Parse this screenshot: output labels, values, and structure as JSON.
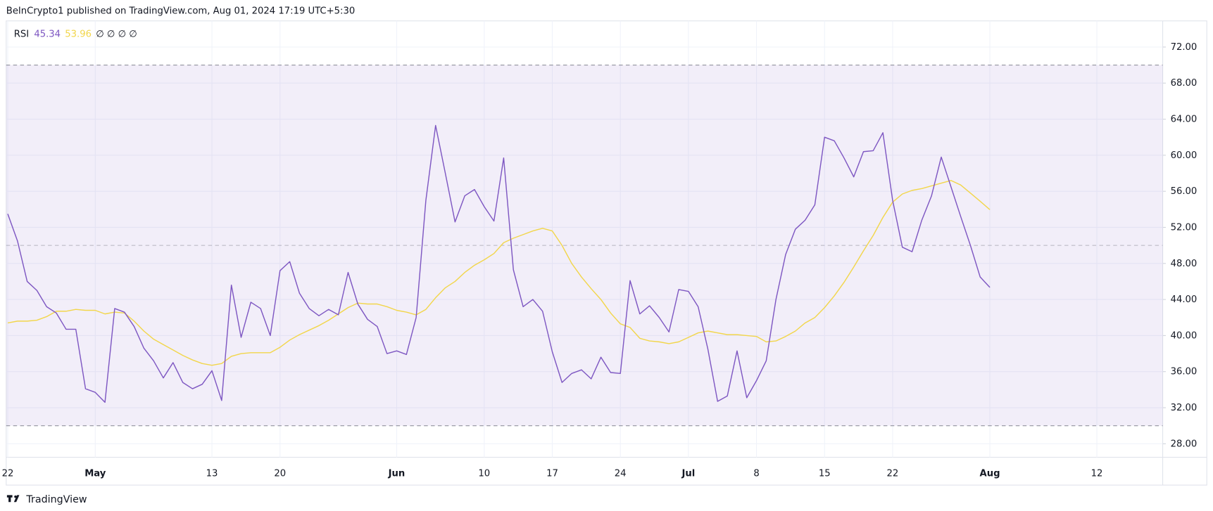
{
  "header": "BeInCrypto1 published on TradingView.com, Aug 01, 2024 17:19 UTC+5:30",
  "footer": "TradingView",
  "chart_data": {
    "type": "line",
    "indicator": "RSI",
    "legend_extra": "∅ ∅ ∅ ∅",
    "categories": [
      "22",
      null,
      null,
      null,
      null,
      null,
      null,
      null,
      null,
      "May",
      null,
      null,
      null,
      null,
      null,
      null,
      null,
      null,
      null,
      null,
      null,
      "13",
      null,
      null,
      null,
      null,
      null,
      null,
      "20",
      null,
      null,
      null,
      null,
      null,
      null,
      null,
      null,
      null,
      null,
      null,
      "Jun",
      null,
      null,
      null,
      null,
      null,
      null,
      null,
      null,
      "10",
      null,
      null,
      null,
      null,
      null,
      null,
      "17",
      null,
      null,
      null,
      null,
      null,
      null,
      "24",
      null,
      null,
      null,
      null,
      null,
      null,
      "Jul",
      null,
      null,
      null,
      null,
      null,
      null,
      "8",
      null,
      null,
      null,
      null,
      null,
      null,
      "15",
      null,
      null,
      null,
      null,
      null,
      null,
      "22",
      null,
      null,
      null,
      null,
      null,
      null,
      null,
      null,
      null,
      "Aug",
      null,
      null,
      null,
      null,
      null,
      null,
      null,
      null,
      null,
      null,
      "12",
      null,
      null,
      null,
      null,
      null,
      null
    ],
    "series": [
      {
        "color": "#7e57c2",
        "values": [
          53.5,
          50.5,
          46,
          45,
          43.2,
          42.5,
          40.7,
          40.7,
          34.1,
          33.7,
          32.6,
          43,
          42.6,
          41,
          38.6,
          37.2,
          35.3,
          37,
          34.8,
          34.1,
          34.6,
          36.1,
          32.8,
          45.6,
          39.8,
          43.7,
          43,
          40,
          47.2,
          48.2,
          44.7,
          43,
          42.2,
          42.9,
          42.3,
          47,
          43.5,
          41.8,
          41,
          38,
          38.3,
          37.9,
          42,
          55,
          63.3,
          58,
          52.6,
          55.5,
          56.2,
          54.3,
          52.7,
          59.7,
          47.3,
          43.2,
          44,
          42.7,
          38.2,
          34.8,
          35.8,
          36.2,
          35.2,
          37.6,
          35.9,
          35.8,
          46.1,
          42.4,
          43.3,
          42,
          40.4,
          45.1,
          44.9,
          43.2,
          38.5,
          32.7,
          33.3,
          38.3,
          33.1,
          35,
          37.2,
          44,
          49,
          51.8,
          52.8,
          54.5,
          62,
          61.6,
          59.7,
          57.6,
          60.4,
          60.5,
          62.5,
          55,
          49.8,
          49.3,
          52.8,
          55.5,
          59.8,
          56.5,
          53.2,
          50,
          46.5,
          45.34,
          null,
          null,
          null,
          null,
          null,
          null,
          null,
          null,
          null,
          null,
          null,
          null,
          null,
          null,
          null,
          null,
          null
        ]
      },
      {
        "color": "#f2d64b",
        "values": [
          41.4,
          41.6,
          41.6,
          41.7,
          42.1,
          42.7,
          42.7,
          42.9,
          42.8,
          42.8,
          42.4,
          42.6,
          42.5,
          41.6,
          40.5,
          39.6,
          39,
          38.4,
          37.8,
          37.3,
          36.9,
          36.7,
          36.9,
          37.7,
          38,
          38.1,
          38.1,
          38.1,
          38.7,
          39.5,
          40.1,
          40.6,
          41.1,
          41.7,
          42.4,
          43.1,
          43.6,
          43.5,
          43.5,
          43.2,
          42.8,
          42.6,
          42.3,
          42.9,
          44.2,
          45.3,
          46,
          47,
          47.8,
          48.4,
          49.1,
          50.3,
          50.8,
          51.2,
          51.6,
          51.9,
          51.6,
          50,
          48,
          46.5,
          45.2,
          44,
          42.5,
          41.3,
          40.9,
          39.7,
          39.4,
          39.3,
          39.1,
          39.3,
          39.8,
          40.3,
          40.5,
          40.3,
          40.1,
          40.1,
          40,
          39.9,
          39.3,
          39.4,
          39.9,
          40.5,
          41.4,
          42,
          43.1,
          44.4,
          45.9,
          47.6,
          49.4,
          51.1,
          53.1,
          54.8,
          55.7,
          56.1,
          56.3,
          56.6,
          56.9,
          57.2,
          56.7,
          55.8,
          54.9,
          53.96,
          null,
          null,
          null,
          null,
          null,
          null,
          null,
          null,
          null,
          null,
          null,
          null,
          null,
          null,
          null,
          null,
          null
        ]
      }
    ],
    "ylim": [
      26.5,
      74.9
    ],
    "yticks": [
      {
        "value": 28,
        "label": "28.00"
      },
      {
        "value": 32,
        "label": "32.00"
      },
      {
        "value": 36,
        "label": "36.00"
      },
      {
        "value": 40,
        "label": "40.00"
      },
      {
        "value": 44,
        "label": "44.00"
      },
      {
        "value": 48,
        "label": "48.00"
      },
      {
        "value": 52,
        "label": "52.00"
      },
      {
        "value": 56,
        "label": "56.00"
      },
      {
        "value": 60,
        "label": "60.00"
      },
      {
        "value": 64,
        "label": "64.00"
      },
      {
        "value": 68,
        "label": "68.00"
      },
      {
        "value": 72,
        "label": "72.00"
      }
    ],
    "upper_band": 70,
    "middle_band": 50,
    "lower_band": 30,
    "band_color": "#7e57c2",
    "grid": true
  }
}
